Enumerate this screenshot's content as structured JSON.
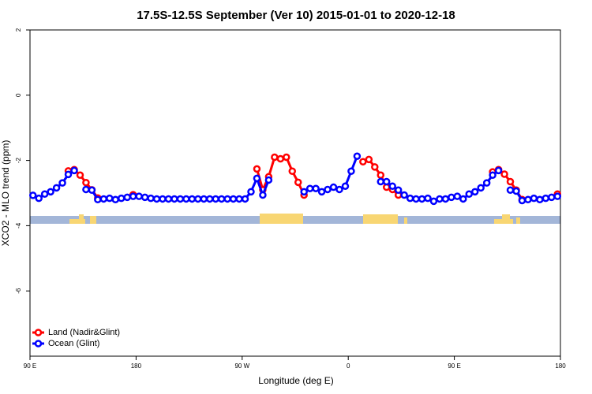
{
  "chart_data": {
    "type": "line",
    "title": "17.5S-12.5S September (Ver 10)   2015-01-01 to 2020-12-18",
    "x_label": "Longitude (deg E)",
    "y_label": "XCO2 - MLO trend (ppm)",
    "xlim": [
      90,
      540
    ],
    "xticks": [
      {
        "value": 90,
        "label": "90 E"
      },
      {
        "value": 180,
        "label": "180"
      },
      {
        "value": 270,
        "label": "90 W"
      },
      {
        "value": 360,
        "label": "0"
      },
      {
        "value": 450,
        "label": "90 E"
      },
      {
        "value": 540,
        "label": "180"
      }
    ],
    "ylim": [
      -8,
      2
    ],
    "yticks": [
      2,
      0,
      -2,
      -4,
      -6
    ],
    "legend": "bottom-left",
    "x": [
      92.5,
      97.5,
      102.5,
      107.5,
      112.5,
      117.5,
      122.5,
      127.5,
      132.5,
      137.5,
      142.5,
      147.5,
      152.5,
      157.5,
      162.5,
      167.5,
      172.5,
      177.5,
      182.5,
      187.5,
      192.5,
      197.5,
      202.5,
      207.5,
      212.5,
      217.5,
      222.5,
      227.5,
      232.5,
      237.5,
      242.5,
      247.5,
      252.5,
      257.5,
      262.5,
      267.5,
      272.5,
      277.5,
      282.5,
      287.5,
      292.5,
      297.5,
      302.5,
      307.5,
      312.5,
      317.5,
      322.5,
      327.5,
      332.5,
      337.5,
      342.5,
      347.5,
      352.5,
      357.5,
      362.5,
      367.5,
      372.5,
      377.5,
      382.5,
      387.5,
      392.5,
      397.5,
      402.5,
      407.5,
      412.5,
      417.5,
      422.5,
      427.5,
      432.5,
      437.5,
      442.5,
      447.5,
      452.5,
      457.5,
      462.5,
      467.5,
      472.5,
      477.5,
      482.5,
      487.5,
      492.5,
      497.5,
      502.5,
      507.5,
      512.5,
      517.5,
      522.5,
      527.5,
      532.5,
      537.5
    ],
    "series": [
      {
        "name": "Land (Nadir&Glint)",
        "color": "#ff0000",
        "values": [
          null,
          null,
          null,
          null,
          null,
          null,
          -2.32,
          -2.28,
          -2.45,
          -2.68,
          -2.9,
          -3.15,
          null,
          null,
          null,
          null,
          null,
          -3.05,
          null,
          null,
          null,
          null,
          null,
          null,
          null,
          null,
          null,
          null,
          null,
          null,
          null,
          null,
          null,
          null,
          null,
          null,
          null,
          null,
          -2.26,
          -2.9,
          -2.5,
          -1.9,
          -1.95,
          -1.9,
          -2.33,
          -2.67,
          -3.06,
          null,
          null,
          null,
          null,
          null,
          null,
          null,
          null,
          null,
          -2.04,
          -1.97,
          -2.2,
          -2.45,
          -2.82,
          -2.89,
          -3.06,
          null,
          null,
          null,
          null,
          null,
          null,
          null,
          null,
          null,
          null,
          null,
          null,
          null,
          null,
          null,
          -2.35,
          -2.28,
          -2.42,
          -2.65,
          -2.91,
          -3.2,
          null,
          null,
          null,
          null,
          null,
          -3.03
        ]
      },
      {
        "name": "Ocean (Glint)",
        "color": "#0000ff",
        "values": [
          -3.07,
          -3.16,
          -3.03,
          -2.96,
          -2.84,
          -2.69,
          -2.43,
          -2.31,
          null,
          -2.89,
          -2.91,
          -3.2,
          -3.18,
          -3.16,
          -3.2,
          -3.16,
          -3.13,
          -3.1,
          -3.1,
          -3.13,
          -3.16,
          -3.18,
          -3.18,
          -3.18,
          -3.18,
          -3.18,
          -3.18,
          -3.18,
          -3.18,
          -3.18,
          -3.18,
          -3.18,
          -3.18,
          -3.18,
          -3.18,
          -3.18,
          -3.18,
          -2.96,
          -2.55,
          -3.06,
          -2.6,
          null,
          null,
          null,
          null,
          null,
          -2.96,
          -2.86,
          -2.86,
          -2.96,
          -2.89,
          -2.82,
          -2.89,
          -2.79,
          -2.33,
          -1.87,
          null,
          null,
          null,
          -2.65,
          -2.65,
          -2.79,
          -2.91,
          -3.06,
          -3.16,
          -3.18,
          -3.18,
          -3.16,
          -3.25,
          -3.18,
          -3.18,
          -3.13,
          -3.1,
          -3.18,
          -3.03,
          -2.96,
          -2.84,
          -2.69,
          -2.45,
          -2.31,
          null,
          -2.91,
          -2.94,
          -3.23,
          -3.2,
          -3.16,
          -3.2,
          -3.16,
          -3.13,
          -3.1
        ]
      }
    ]
  }
}
